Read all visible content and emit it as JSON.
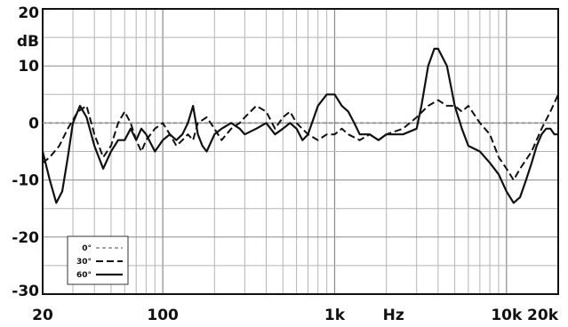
{
  "chart_data": {
    "type": "line",
    "title": "",
    "xlabel": "Hz",
    "ylabel": "dB",
    "x_scale": "log",
    "xlim": [
      20,
      20000
    ],
    "ylim": [
      -30,
      20
    ],
    "grid": true,
    "legend_position": "bottom-left",
    "x_tick_labels": [
      {
        "value": 20,
        "label": "20"
      },
      {
        "value": 100,
        "label": "100"
      },
      {
        "value": 1000,
        "label": "1k"
      },
      {
        "value": 10000,
        "label": "10k"
      },
      {
        "value": 20000,
        "label": "20k"
      }
    ],
    "y_tick_labels": [
      {
        "value": 20,
        "label": "20"
      },
      {
        "value": 10,
        "label": "10"
      },
      {
        "value": 0,
        "label": "0"
      },
      {
        "value": -10,
        "label": "-10"
      },
      {
        "value": -20,
        "label": "-20"
      },
      {
        "value": -30,
        "label": "-30"
      }
    ],
    "series": [
      {
        "name": "0°",
        "style": "dotted-gray",
        "x": [
          20,
          20000
        ],
        "y": [
          0,
          0
        ]
      },
      {
        "name": "30°",
        "style": "dashed",
        "x": [
          20,
          22,
          25,
          28,
          32,
          36,
          40,
          45,
          50,
          55,
          60,
          65,
          70,
          75,
          80,
          90,
          100,
          110,
          120,
          130,
          140,
          150,
          160,
          180,
          200,
          220,
          250,
          280,
          300,
          350,
          400,
          450,
          500,
          550,
          600,
          700,
          800,
          900,
          1000,
          1100,
          1200,
          1400,
          1600,
          1800,
          2000,
          2500,
          3000,
          3500,
          4000,
          4500,
          5000,
          5500,
          6000,
          7000,
          8000,
          9000,
          10000,
          11000,
          12000,
          14000,
          16000,
          18000,
          20000
        ],
        "y": [
          -7,
          -6,
          -4,
          -1,
          2,
          3,
          -2,
          -6,
          -4,
          0,
          2,
          0,
          -3,
          -5,
          -3,
          -1,
          0,
          -2,
          -4,
          -3,
          -2,
          -3,
          0,
          1,
          -1,
          -3,
          -1,
          0,
          1,
          3,
          2,
          -1,
          1,
          2,
          0,
          -2,
          -3,
          -2,
          -2,
          -1,
          -2,
          -3,
          -2,
          -3,
          -2,
          -1,
          1,
          3,
          4,
          3,
          3,
          2,
          3,
          0,
          -2,
          -6,
          -8,
          -10,
          -8,
          -5,
          -1,
          2,
          5
        ]
      },
      {
        "name": "60°",
        "style": "solid",
        "x": [
          20,
          22,
          24,
          26,
          28,
          30,
          33,
          36,
          40,
          45,
          50,
          55,
          60,
          65,
          70,
          75,
          80,
          90,
          100,
          110,
          120,
          130,
          140,
          150,
          160,
          170,
          180,
          200,
          220,
          250,
          280,
          300,
          350,
          400,
          450,
          500,
          550,
          600,
          650,
          700,
          800,
          900,
          1000,
          1100,
          1200,
          1300,
          1400,
          1600,
          1800,
          2000,
          2500,
          3000,
          3200,
          3500,
          3800,
          4000,
          4500,
          5000,
          5500,
          6000,
          7000,
          8000,
          9000,
          10000,
          11000,
          12000,
          13000,
          14000,
          15000,
          16000,
          17000,
          18000,
          19000,
          20000
        ],
        "y": [
          -5,
          -10,
          -14,
          -12,
          -6,
          0,
          3,
          1,
          -4,
          -8,
          -5,
          -3,
          -3,
          -1,
          -3,
          -1,
          -2,
          -5,
          -3,
          -2,
          -3,
          -2,
          0,
          3,
          -2,
          -4,
          -5,
          -2,
          -1,
          0,
          -1,
          -2,
          -1,
          0,
          -2,
          -1,
          0,
          -1,
          -3,
          -2,
          3,
          5,
          5,
          3,
          2,
          0,
          -2,
          -2,
          -3,
          -2,
          -2,
          -1,
          3,
          10,
          13,
          13,
          10,
          3,
          -1,
          -4,
          -5,
          -7,
          -9,
          -12,
          -14,
          -13,
          -10,
          -7,
          -4,
          -2,
          -1,
          -1,
          -2,
          -2
        ]
      }
    ]
  }
}
